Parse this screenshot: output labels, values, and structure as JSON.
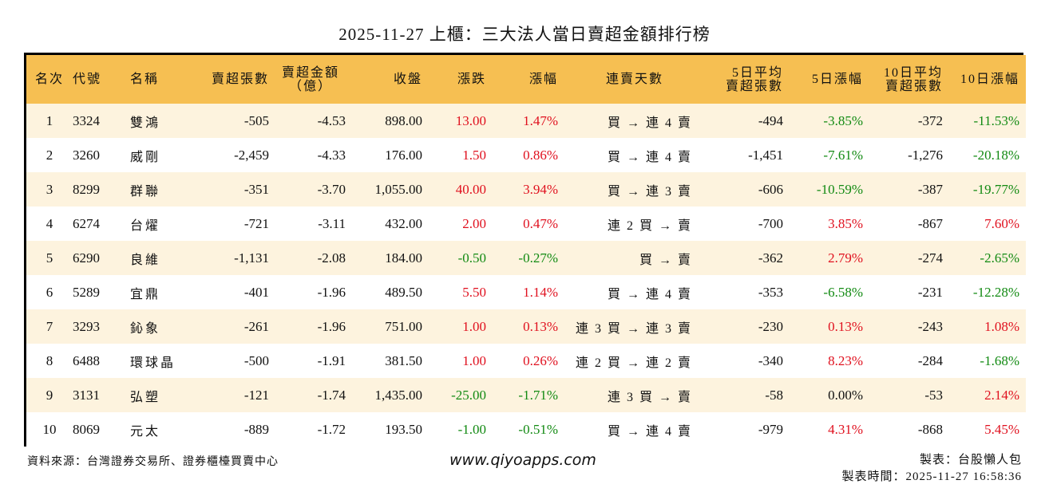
{
  "title": "2025-11-27 上櫃：三大法人當日賣超金額排行榜",
  "colors": {
    "header_bg": "#F6BF52",
    "odd_row_bg": "#FDF3DE",
    "up": "#E0101E",
    "down": "#128A12",
    "border": "#000000"
  },
  "columns": [
    {
      "key": "rank",
      "label": "名次"
    },
    {
      "key": "code",
      "label": "代號"
    },
    {
      "key": "name",
      "label": "名稱"
    },
    {
      "key": "net_sell_lots",
      "label": "賣超張數"
    },
    {
      "key": "net_sell_amount",
      "label_line1": "賣超金額",
      "label_line2": "（億）"
    },
    {
      "key": "close",
      "label": "收盤"
    },
    {
      "key": "change",
      "label": "漲跌"
    },
    {
      "key": "change_pct",
      "label": "漲幅"
    },
    {
      "key": "streak",
      "label": "連賣天數"
    },
    {
      "key": "avg5_sell",
      "label_line1": "5日平均",
      "label_line2": "賣超張數"
    },
    {
      "key": "chg5_pct",
      "label": "5日漲幅"
    },
    {
      "key": "avg10_sell",
      "label_line1": "10日平均",
      "label_line2": "賣超張數"
    },
    {
      "key": "chg10_pct",
      "label": "10日漲幅"
    }
  ],
  "rows": [
    {
      "rank": "1",
      "code": "3324",
      "name": "雙鴻",
      "net_sell_lots": "-505",
      "net_sell_amount": "-4.53",
      "close": "898.00",
      "change": "13.00",
      "change_dir": "up",
      "change_pct": "1.47%",
      "streak": "買 → 連 4 賣",
      "avg5_sell": "-494",
      "chg5_pct": "-3.85%",
      "chg5_dir": "down",
      "avg10_sell": "-372",
      "chg10_pct": "-11.53%",
      "chg10_dir": "down"
    },
    {
      "rank": "2",
      "code": "3260",
      "name": "威剛",
      "net_sell_lots": "-2,459",
      "net_sell_amount": "-4.33",
      "close": "176.00",
      "change": "1.50",
      "change_dir": "up",
      "change_pct": "0.86%",
      "streak": "買 → 連 4 賣",
      "avg5_sell": "-1,451",
      "chg5_pct": "-7.61%",
      "chg5_dir": "down",
      "avg10_sell": "-1,276",
      "chg10_pct": "-20.18%",
      "chg10_dir": "down"
    },
    {
      "rank": "3",
      "code": "8299",
      "name": "群聯",
      "net_sell_lots": "-351",
      "net_sell_amount": "-3.70",
      "close": "1,055.00",
      "change": "40.00",
      "change_dir": "up",
      "change_pct": "3.94%",
      "streak": "買 → 連 3 賣",
      "avg5_sell": "-606",
      "chg5_pct": "-10.59%",
      "chg5_dir": "down",
      "avg10_sell": "-387",
      "chg10_pct": "-19.77%",
      "chg10_dir": "down"
    },
    {
      "rank": "4",
      "code": "6274",
      "name": "台燿",
      "net_sell_lots": "-721",
      "net_sell_amount": "-3.11",
      "close": "432.00",
      "change": "2.00",
      "change_dir": "up",
      "change_pct": "0.47%",
      "streak": "連 2 買 → 賣",
      "avg5_sell": "-700",
      "chg5_pct": "3.85%",
      "chg5_dir": "up",
      "avg10_sell": "-867",
      "chg10_pct": "7.60%",
      "chg10_dir": "up"
    },
    {
      "rank": "5",
      "code": "6290",
      "name": "良維",
      "net_sell_lots": "-1,131",
      "net_sell_amount": "-2.08",
      "close": "184.00",
      "change": "-0.50",
      "change_dir": "down",
      "change_pct": "-0.27%",
      "streak": "買 → 賣",
      "avg5_sell": "-362",
      "chg5_pct": "2.79%",
      "chg5_dir": "up",
      "avg10_sell": "-274",
      "chg10_pct": "-2.65%",
      "chg10_dir": "down"
    },
    {
      "rank": "6",
      "code": "5289",
      "name": "宜鼎",
      "net_sell_lots": "-401",
      "net_sell_amount": "-1.96",
      "close": "489.50",
      "change": "5.50",
      "change_dir": "up",
      "change_pct": "1.14%",
      "streak": "買 → 連 4 賣",
      "avg5_sell": "-353",
      "chg5_pct": "-6.58%",
      "chg5_dir": "down",
      "avg10_sell": "-231",
      "chg10_pct": "-12.28%",
      "chg10_dir": "down"
    },
    {
      "rank": "7",
      "code": "3293",
      "name": "鈊象",
      "net_sell_lots": "-261",
      "net_sell_amount": "-1.96",
      "close": "751.00",
      "change": "1.00",
      "change_dir": "up",
      "change_pct": "0.13%",
      "streak": "連 3 買 → 連 3 賣",
      "avg5_sell": "-230",
      "chg5_pct": "0.13%",
      "chg5_dir": "up",
      "avg10_sell": "-243",
      "chg10_pct": "1.08%",
      "chg10_dir": "up"
    },
    {
      "rank": "8",
      "code": "6488",
      "name": "環球晶",
      "net_sell_lots": "-500",
      "net_sell_amount": "-1.91",
      "close": "381.50",
      "change": "1.00",
      "change_dir": "up",
      "change_pct": "0.26%",
      "streak": "連 2 買 → 連 2 賣",
      "avg5_sell": "-340",
      "chg5_pct": "8.23%",
      "chg5_dir": "up",
      "avg10_sell": "-284",
      "chg10_pct": "-1.68%",
      "chg10_dir": "down"
    },
    {
      "rank": "9",
      "code": "3131",
      "name": "弘塑",
      "net_sell_lots": "-121",
      "net_sell_amount": "-1.74",
      "close": "1,435.00",
      "change": "-25.00",
      "change_dir": "down",
      "change_pct": "-1.71%",
      "streak": "連 3 買 → 賣",
      "avg5_sell": "-58",
      "chg5_pct": "0.00%",
      "chg5_dir": "flat",
      "avg10_sell": "-53",
      "chg10_pct": "2.14%",
      "chg10_dir": "up"
    },
    {
      "rank": "10",
      "code": "8069",
      "name": "元太",
      "net_sell_lots": "-889",
      "net_sell_amount": "-1.72",
      "close": "193.50",
      "change": "-1.00",
      "change_dir": "down",
      "change_pct": "-0.51%",
      "streak": "買 → 連 4 賣",
      "avg5_sell": "-979",
      "chg5_pct": "4.31%",
      "chg5_dir": "up",
      "avg10_sell": "-868",
      "chg10_pct": "5.45%",
      "chg10_dir": "up"
    }
  ],
  "footer": {
    "source": "資料來源：台灣證券交易所、證券櫃檯買賣中心",
    "website": "www.qiyoapps.com",
    "maker": "製表：台股懶人包",
    "made_time": "製表時間：2025-11-27 16:58:36"
  }
}
